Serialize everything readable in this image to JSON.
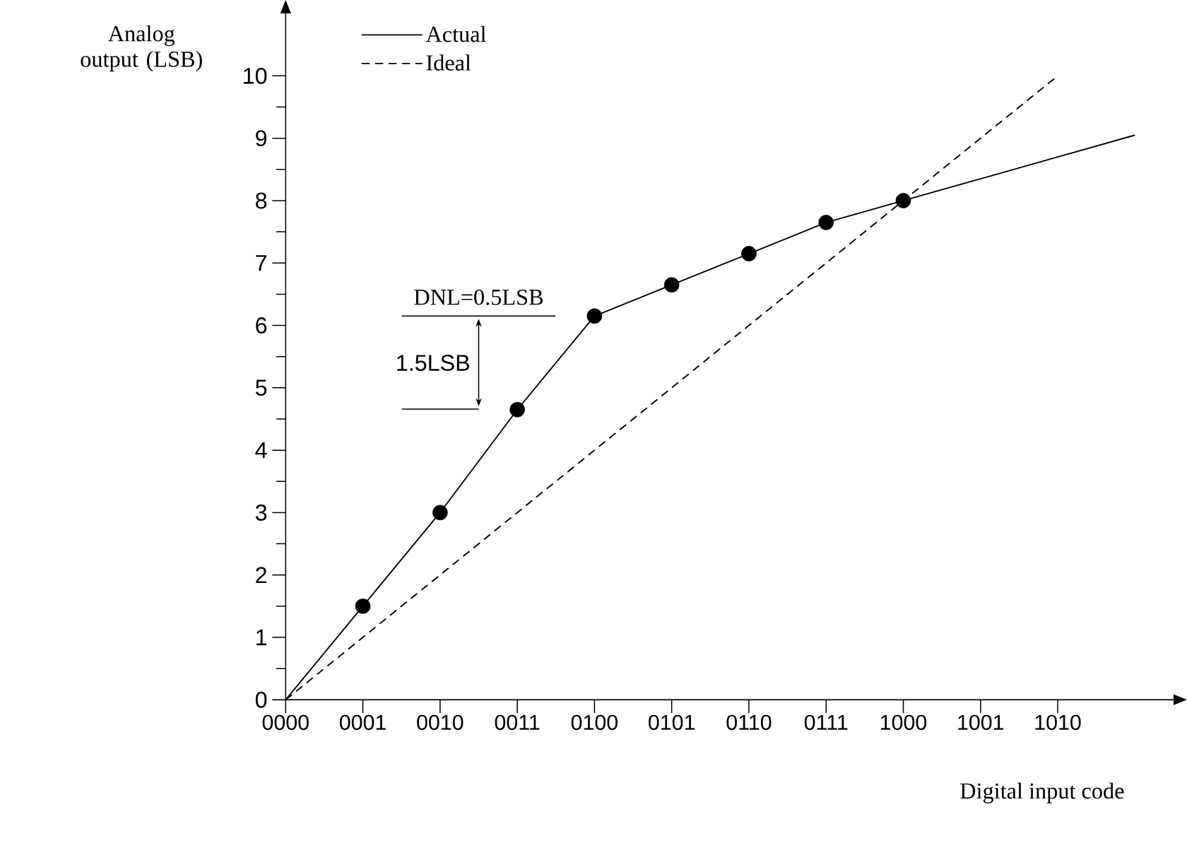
{
  "chart_data": {
    "type": "line",
    "xlabel": "Digital input code",
    "ylabel": "Analog output (LSB)",
    "ylim": [
      0,
      11
    ],
    "categories": [
      "0000",
      "0001",
      "0010",
      "0011",
      "0100",
      "0101",
      "0110",
      "0111",
      "1000",
      "1001",
      "1010",
      null
    ],
    "yticks": [
      0,
      1,
      2,
      3,
      4,
      5,
      6,
      7,
      8,
      9,
      10
    ],
    "series": [
      {
        "name": "Actual",
        "color": "#000000",
        "line_style": "solid",
        "marker": "none",
        "values": [
          0,
          1.5,
          3,
          4.65,
          6.15,
          6.65,
          7.15,
          7.65,
          8,
          8.35,
          8.7,
          9.05
        ]
      },
      {
        "name": "Ideal",
        "color": "#000000",
        "line_style": "dashed",
        "marker": "none",
        "values": [
          0,
          1,
          2,
          3,
          4,
          5,
          6,
          7,
          8,
          9,
          10,
          null
        ]
      },
      {
        "type": "scatter",
        "color": "#000000",
        "marker": "circle",
        "values": [
          null,
          1.5,
          3,
          4.65,
          6.15,
          6.65,
          7.15,
          7.65,
          8,
          null,
          null,
          null
        ]
      }
    ],
    "annotations": [
      "DNL=0.5LSB",
      "1.5LSB"
    ],
    "legend": "top left",
    "grid": false
  }
}
